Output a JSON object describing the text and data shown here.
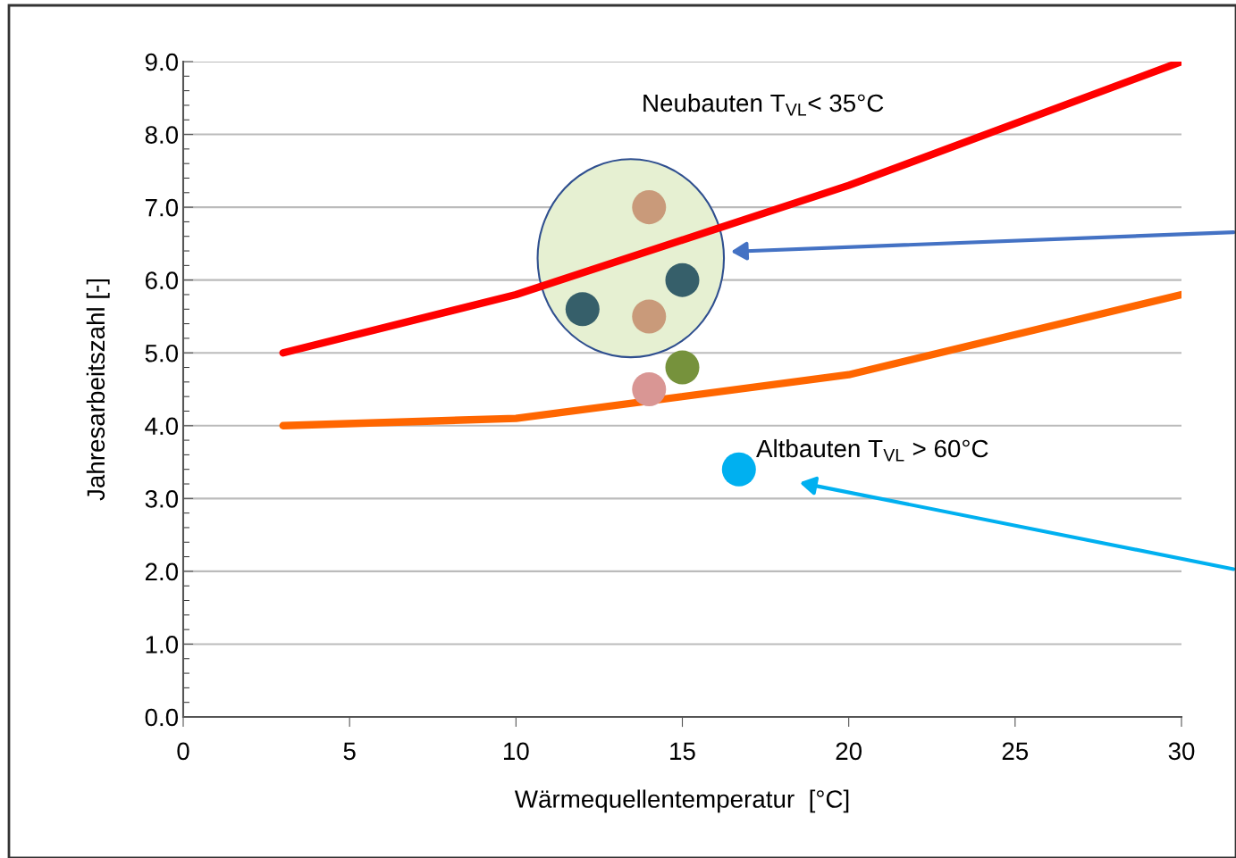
{
  "chart_data": {
    "type": "line",
    "xlabel": "Wärmequellentemperatur  [°C]",
    "ylabel": "Jahresarbeitszahl [-]",
    "xlim": [
      0,
      30
    ],
    "xticks": [
      0,
      5,
      10,
      15,
      20,
      25,
      30
    ],
    "ylim": [
      0,
      9
    ],
    "yticks": [
      {
        "value": 0,
        "label": "0.0"
      },
      {
        "value": 1,
        "label": "1.0"
      },
      {
        "value": 2,
        "label": "2.0"
      },
      {
        "value": 3,
        "label": "3.0"
      },
      {
        "value": 4,
        "label": "4.0"
      },
      {
        "value": 5,
        "label": "5.0"
      },
      {
        "value": 6,
        "label": "6.0"
      },
      {
        "value": 7,
        "label": "7.0"
      },
      {
        "value": 8,
        "label": "8.0"
      },
      {
        "value": 9,
        "label": "9.0"
      }
    ],
    "grid": "y",
    "series": [
      {
        "color": "#ff0000",
        "x": [
          3,
          10,
          20,
          30
        ],
        "values": [
          5.0,
          5.8,
          7.3,
          9.0
        ]
      },
      {
        "color": "#ff6600",
        "x": [
          3,
          10,
          20,
          30
        ],
        "values": [
          4.0,
          4.1,
          4.7,
          5.8
        ]
      },
      {
        "type": "scatter",
        "marker": "circle",
        "x": [
          14,
          14,
          12,
          15,
          15,
          14,
          16.7
        ],
        "values": [
          7.0,
          5.5,
          5.6,
          6.0,
          4.8,
          4.5,
          3.4
        ],
        "colors": [
          "#c99a7a",
          "#c99a7a",
          "#365f6a",
          "#365f6a",
          "#76923c",
          "#d99694",
          "#00b0f0"
        ]
      }
    ],
    "annotations": [
      "Neubauten T$_{VL}$< 35°C",
      "Altbauten T$_{VL}$ > 60°C"
    ]
  }
}
